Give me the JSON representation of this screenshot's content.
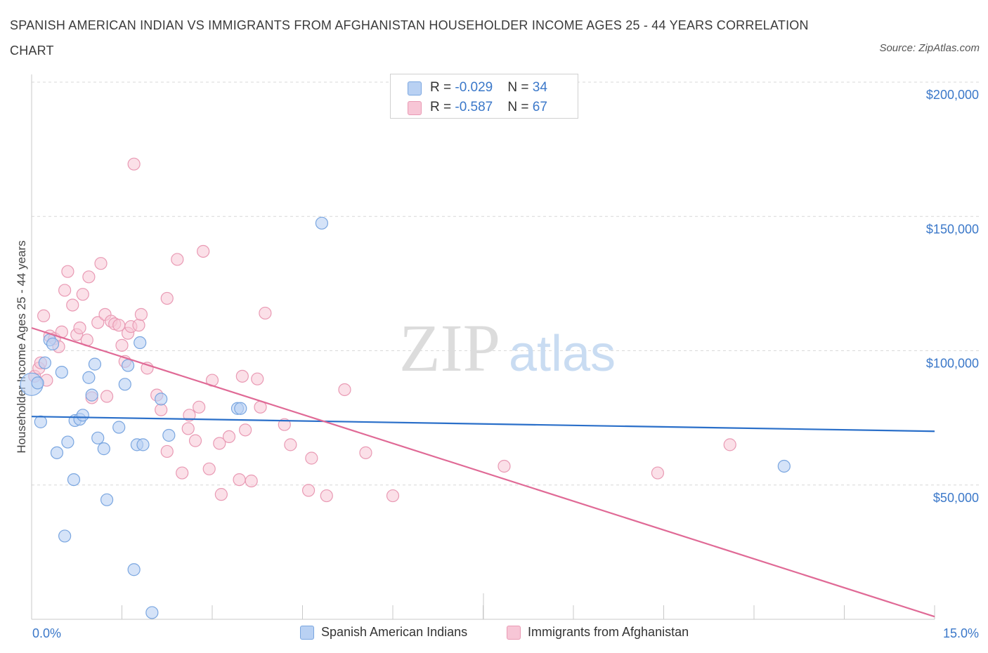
{
  "title": "SPANISH AMERICAN INDIAN VS IMMIGRANTS FROM AFGHANISTAN HOUSEHOLDER INCOME AGES 25 - 44 YEARS CORRELATION CHART",
  "source": "Source: ZipAtlas.com",
  "watermark": {
    "zip": "ZIP",
    "atlas": "atlas"
  },
  "legend_top": {
    "rows": [
      {
        "r_label": "R = ",
        "r_value": "-0.029",
        "n_label": "N = ",
        "n_value": "34"
      },
      {
        "r_label": "R = ",
        "r_value": "-0.587",
        "n_label": "N = ",
        "n_value": "67"
      }
    ]
  },
  "legend_bottom": [
    "Spanish American Indians",
    "Immigrants from Afghanistan"
  ],
  "colors": {
    "blue_fill": "#b9d1f3",
    "blue_stroke": "#7aa6e0",
    "blue_line": "#2a6fc9",
    "pink_fill": "#f7c6d6",
    "pink_stroke": "#e99ab4",
    "pink_line": "#e06a96",
    "tick_text": "#3b78c9",
    "grid": "#d8d8d8"
  },
  "chart_data": {
    "type": "scatter",
    "title": "SPANISH AMERICAN INDIAN VS IMMIGRANTS FROM AFGHANISTAN HOUSEHOLDER INCOME AGES 25 - 44 YEARS CORRELATION CHART",
    "xlabel": "",
    "ylabel": "Householder Income Ages 25 - 44 years",
    "xlim": [
      0,
      15
    ],
    "ylim": [
      0,
      200000
    ],
    "x_tick_labels": [
      "0.0%",
      "15.0%"
    ],
    "y_ticks": [
      50000,
      100000,
      150000,
      200000
    ],
    "y_tick_labels": [
      "$50,000",
      "$100,000",
      "$150,000",
      "$200,000"
    ],
    "grid": true,
    "legend_position": "top-center",
    "series": [
      {
        "name": "Spanish American Indians",
        "R": -0.029,
        "N": 34,
        "trend": {
          "x": [
            0,
            15
          ],
          "y": [
            75500,
            70000
          ]
        },
        "points": [
          [
            0.0,
            87500
          ],
          [
            0.1,
            88000
          ],
          [
            0.15,
            73500
          ],
          [
            0.22,
            95500
          ],
          [
            0.3,
            104000
          ],
          [
            0.35,
            102500
          ],
          [
            0.42,
            62000
          ],
          [
            0.5,
            92000
          ],
          [
            0.55,
            31000
          ],
          [
            0.6,
            66000
          ],
          [
            0.7,
            52000
          ],
          [
            0.72,
            74000
          ],
          [
            0.8,
            74500
          ],
          [
            0.85,
            76000
          ],
          [
            0.95,
            90000
          ],
          [
            1.0,
            83500
          ],
          [
            1.05,
            95000
          ],
          [
            1.1,
            67500
          ],
          [
            1.2,
            63500
          ],
          [
            1.25,
            44500
          ],
          [
            1.45,
            71500
          ],
          [
            1.55,
            87500
          ],
          [
            1.6,
            94500
          ],
          [
            1.7,
            18500
          ],
          [
            1.75,
            65000
          ],
          [
            1.8,
            103000
          ],
          [
            1.85,
            65000
          ],
          [
            2.0,
            2500
          ],
          [
            2.15,
            82000
          ],
          [
            2.28,
            68500
          ],
          [
            3.42,
            78500
          ],
          [
            3.47,
            78500
          ],
          [
            4.82,
            147500
          ],
          [
            12.5,
            57000
          ]
        ]
      },
      {
        "name": "Immigrants from Afghanistan",
        "R": -0.587,
        "N": 67,
        "trend": {
          "x": [
            0,
            15
          ],
          "y": [
            108500,
            1000
          ]
        },
        "points": [
          [
            0.05,
            90500
          ],
          [
            0.12,
            93500
          ],
          [
            0.15,
            95500
          ],
          [
            0.2,
            113000
          ],
          [
            0.25,
            89000
          ],
          [
            0.3,
            105500
          ],
          [
            0.38,
            104500
          ],
          [
            0.45,
            101500
          ],
          [
            0.5,
            107000
          ],
          [
            0.55,
            122500
          ],
          [
            0.6,
            129500
          ],
          [
            0.68,
            117000
          ],
          [
            0.75,
            106000
          ],
          [
            0.8,
            108500
          ],
          [
            0.85,
            121000
          ],
          [
            0.92,
            104000
          ],
          [
            0.95,
            127500
          ],
          [
            1.0,
            82500
          ],
          [
            1.1,
            110500
          ],
          [
            1.15,
            132500
          ],
          [
            1.22,
            113500
          ],
          [
            1.25,
            83000
          ],
          [
            1.32,
            111000
          ],
          [
            1.38,
            110000
          ],
          [
            1.45,
            109500
          ],
          [
            1.5,
            102000
          ],
          [
            1.55,
            96000
          ],
          [
            1.6,
            106500
          ],
          [
            1.65,
            109000
          ],
          [
            1.7,
            169500
          ],
          [
            1.78,
            109500
          ],
          [
            1.82,
            113500
          ],
          [
            1.92,
            93500
          ],
          [
            2.08,
            83500
          ],
          [
            2.15,
            78000
          ],
          [
            2.25,
            62500
          ],
          [
            2.25,
            119500
          ],
          [
            2.42,
            134000
          ],
          [
            2.5,
            54500
          ],
          [
            2.6,
            71000
          ],
          [
            2.62,
            76000
          ],
          [
            2.72,
            66500
          ],
          [
            2.78,
            79000
          ],
          [
            2.85,
            137000
          ],
          [
            2.95,
            56000
          ],
          [
            3.0,
            89000
          ],
          [
            3.12,
            65500
          ],
          [
            3.15,
            46500
          ],
          [
            3.28,
            68000
          ],
          [
            3.45,
            52000
          ],
          [
            3.5,
            90500
          ],
          [
            3.55,
            70500
          ],
          [
            3.65,
            51500
          ],
          [
            3.75,
            89500
          ],
          [
            3.8,
            79000
          ],
          [
            3.88,
            114000
          ],
          [
            4.2,
            72500
          ],
          [
            4.3,
            65000
          ],
          [
            4.6,
            48000
          ],
          [
            4.65,
            60000
          ],
          [
            4.9,
            46000
          ],
          [
            5.2,
            85500
          ],
          [
            5.55,
            62000
          ],
          [
            6.0,
            46000
          ],
          [
            7.85,
            57000
          ],
          [
            10.4,
            54500
          ],
          [
            11.6,
            65000
          ]
        ]
      }
    ]
  }
}
